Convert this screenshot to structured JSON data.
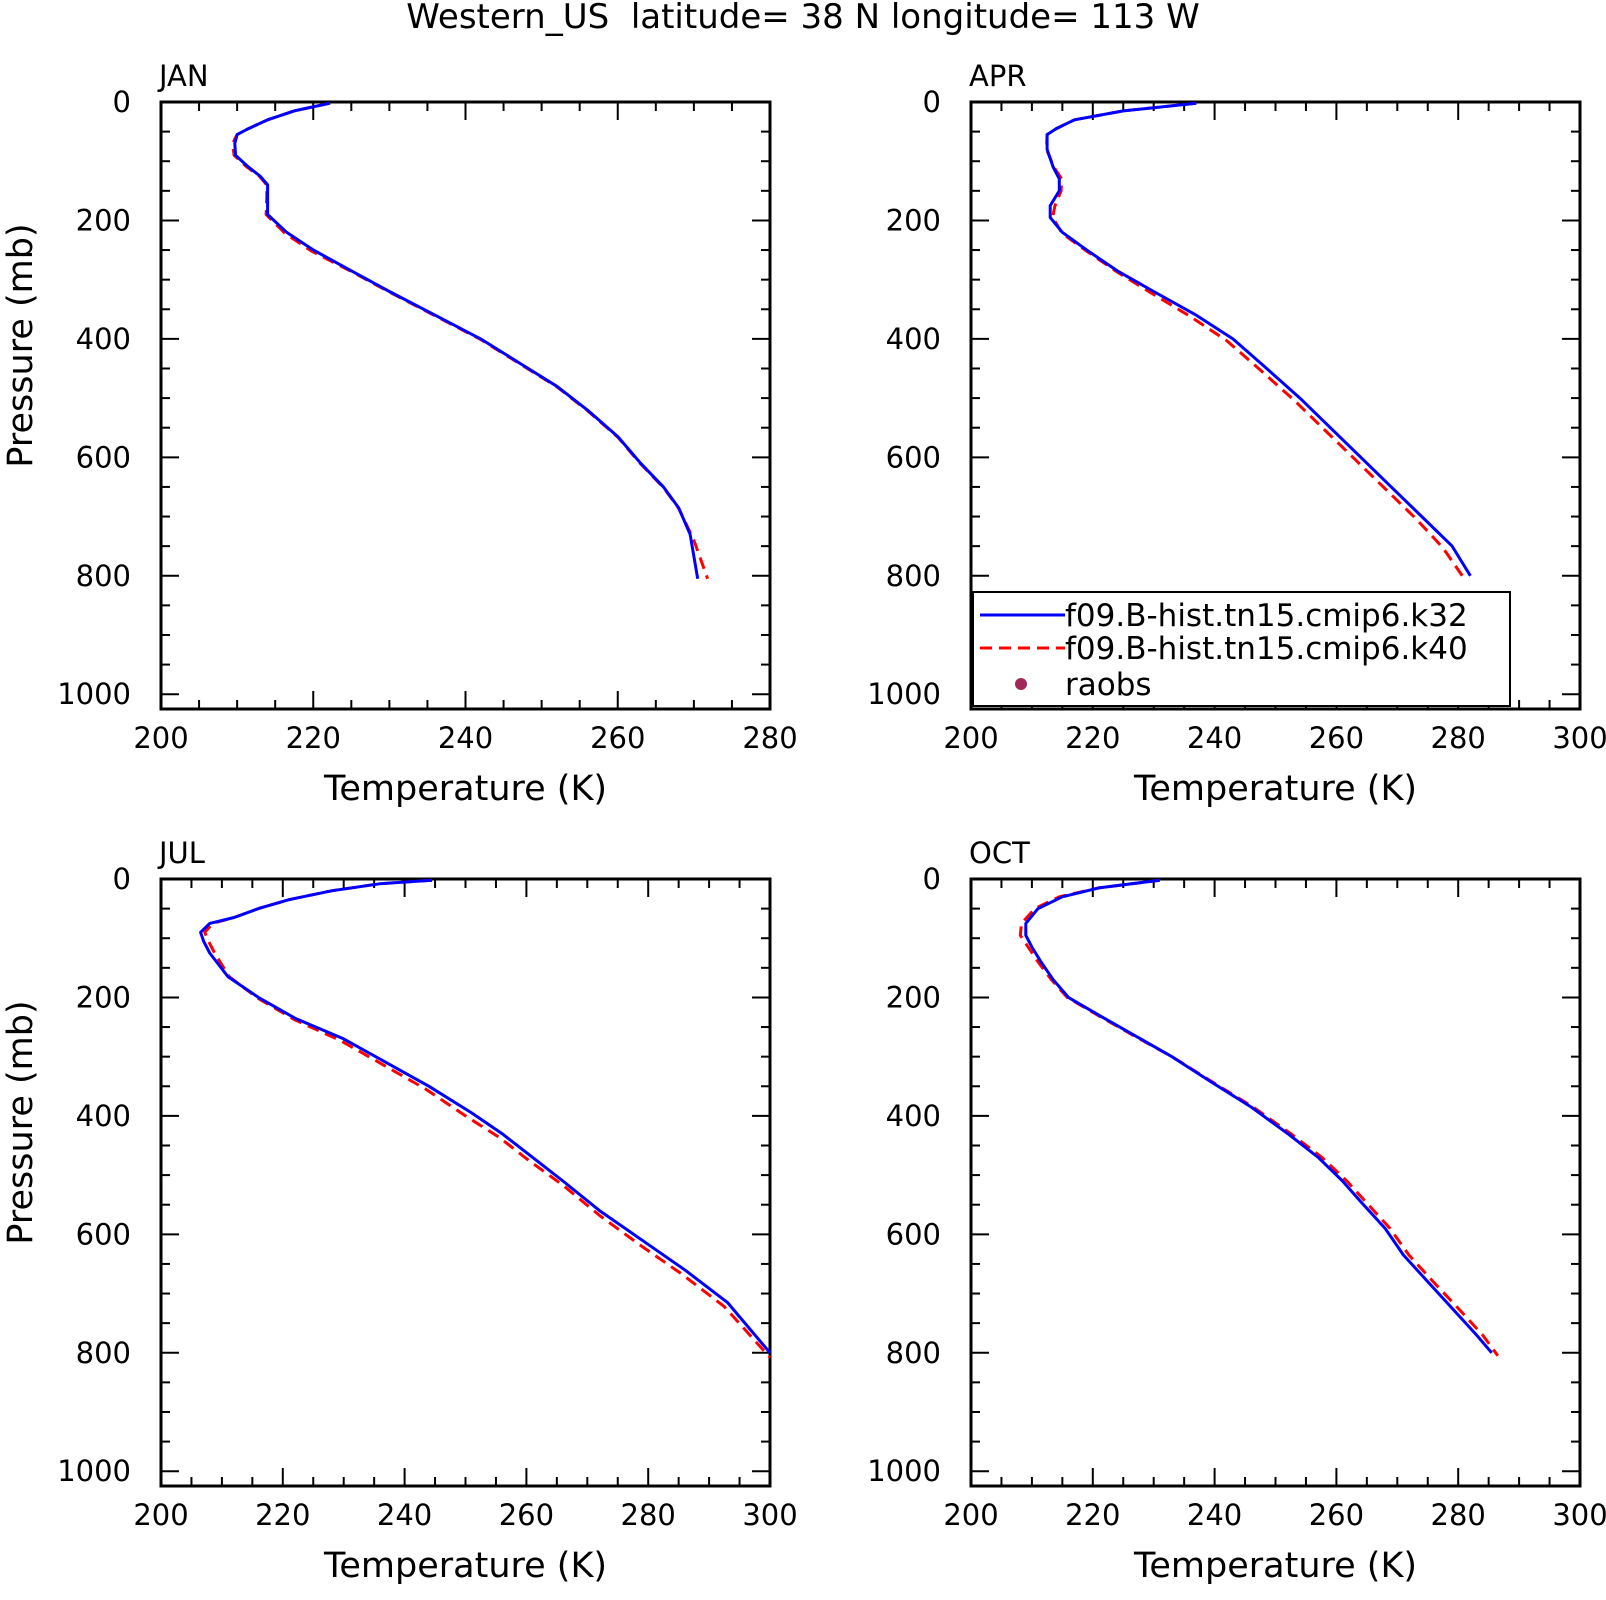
{
  "figure_title": "Western_US  latitude= 38 N longitude= 113 W",
  "legend": {
    "entries": [
      {
        "label": "f09.B-hist.tn15.cmip6.k32",
        "color": "#0000ff",
        "style": "solid"
      },
      {
        "label": "f09.B-hist.tn15.cmip6.k40",
        "color": "#ff0000",
        "style": "dashed"
      },
      {
        "label": "raobs",
        "color": "#a0295a",
        "style": "marker"
      }
    ]
  },
  "chart_data": [
    {
      "type": "line",
      "panel_label": "JAN",
      "xlabel": "Temperature (K)",
      "ylabel": "Pressure (mb)",
      "xlim": [
        200,
        280
      ],
      "ylim": [
        0,
        1025
      ],
      "y_inverted": true,
      "xticks": [
        200,
        220,
        240,
        260,
        280
      ],
      "yticks": [
        0,
        200,
        400,
        600,
        800,
        1000
      ],
      "series": [
        {
          "name": "f09.B-hist.tn15.cmip6.k32",
          "color": "#0000ff",
          "points": [
            [
              222.2,
              2
            ],
            [
              217.5,
              15
            ],
            [
              214,
              30
            ],
            [
              211.5,
              45
            ],
            [
              210,
              55
            ],
            [
              209.7,
              70
            ],
            [
              209.8,
              90
            ],
            [
              211.5,
              110
            ],
            [
              213,
              125
            ],
            [
              214,
              140
            ],
            [
              214,
              160
            ],
            [
              214,
              190
            ],
            [
              216.5,
              220
            ],
            [
              220,
              250
            ],
            [
              225,
              285
            ],
            [
              230,
              320
            ],
            [
              236,
              360
            ],
            [
              242,
              400
            ],
            [
              247,
              440
            ],
            [
              252,
              480
            ],
            [
              256,
              520
            ],
            [
              260,
              565
            ],
            [
              263,
              610
            ],
            [
              266,
              650
            ],
            [
              268,
              685
            ],
            [
              269.5,
              730
            ],
            [
              270.5,
              805
            ]
          ]
        },
        {
          "name": "f09.B-hist.tn15.cmip6.k40",
          "color": "#ff0000",
          "points": [
            [
              222.2,
              2
            ],
            [
              217.5,
              15
            ],
            [
              214,
              30
            ],
            [
              211.5,
              45
            ],
            [
              210,
              55
            ],
            [
              209.4,
              70
            ],
            [
              209.6,
              90
            ],
            [
              211.3,
              110
            ],
            [
              212.9,
              125
            ],
            [
              213.9,
              140
            ],
            [
              213.9,
              160
            ],
            [
              213.8,
              190
            ],
            [
              216.3,
              222
            ],
            [
              219.8,
              252
            ],
            [
              225,
              286
            ],
            [
              230,
              321
            ],
            [
              236,
              361
            ],
            [
              242,
              401
            ],
            [
              247,
              441
            ],
            [
              252,
              481
            ],
            [
              256,
              521
            ],
            [
              260,
              566
            ],
            [
              263,
              611
            ],
            [
              266,
              651
            ],
            [
              268,
              686
            ],
            [
              270,
              740
            ],
            [
              271.8,
              805
            ]
          ]
        }
      ]
    },
    {
      "type": "line",
      "panel_label": "APR",
      "xlabel": "Temperature (K)",
      "ylabel": "",
      "xlim": [
        200,
        300
      ],
      "ylim": [
        0,
        1025
      ],
      "y_inverted": true,
      "xticks": [
        200,
        220,
        240,
        260,
        280,
        300
      ],
      "yticks": [
        0,
        200,
        400,
        600,
        800,
        1000
      ],
      "series": [
        {
          "name": "f09.B-hist.tn15.cmip6.k32",
          "color": "#0000ff",
          "points": [
            [
              237,
              2
            ],
            [
              225,
              15
            ],
            [
              217,
              30
            ],
            [
              214,
              45
            ],
            [
              212.5,
              55
            ],
            [
              212.5,
              80
            ],
            [
              213.5,
              110
            ],
            [
              214.5,
              130
            ],
            [
              214.5,
              150
            ],
            [
              213,
              175
            ],
            [
              213,
              195
            ],
            [
              215,
              220
            ],
            [
              219,
              250
            ],
            [
              224,
              285
            ],
            [
              230,
              320
            ],
            [
              237,
              360
            ],
            [
              243,
              400
            ],
            [
              248,
              445
            ],
            [
              254,
              500
            ],
            [
              259,
              550
            ],
            [
              264,
              600
            ],
            [
              269,
              650
            ],
            [
              274,
              700
            ],
            [
              279,
              750
            ],
            [
              282,
              800
            ]
          ]
        },
        {
          "name": "f09.B-hist.tn15.cmip6.k40",
          "color": "#ff0000",
          "points": [
            [
              237,
              2
            ],
            [
              225,
              15
            ],
            [
              217,
              30
            ],
            [
              214,
              45
            ],
            [
              212.5,
              55
            ],
            [
              212.4,
              80
            ],
            [
              213.6,
              110
            ],
            [
              214.9,
              130
            ],
            [
              214.8,
              150
            ],
            [
              213.8,
              175
            ],
            [
              213.4,
              195
            ],
            [
              215,
              222
            ],
            [
              219,
              252
            ],
            [
              224,
              287
            ],
            [
              229.5,
              322
            ],
            [
              236,
              362
            ],
            [
              242,
              403
            ],
            [
              247,
              448
            ],
            [
              253,
              503
            ],
            [
              258,
              553
            ],
            [
              263,
              603
            ],
            [
              268,
              653
            ],
            [
              273,
              703
            ],
            [
              277.5,
              753
            ],
            [
              281,
              805
            ]
          ]
        }
      ]
    },
    {
      "type": "line",
      "panel_label": "JUL",
      "xlabel": "Temperature (K)",
      "ylabel": "Pressure (mb)",
      "xlim": [
        200,
        300
      ],
      "ylim": [
        0,
        1025
      ],
      "y_inverted": true,
      "xticks": [
        200,
        220,
        240,
        260,
        280,
        300
      ],
      "yticks": [
        0,
        200,
        400,
        600,
        800,
        1000
      ],
      "series": [
        {
          "name": "f09.B-hist.tn15.cmip6.k32",
          "color": "#0000ff",
          "points": [
            [
              244.5,
              2
            ],
            [
              236,
              8
            ],
            [
              228,
              20
            ],
            [
              221,
              35
            ],
            [
              216,
              50
            ],
            [
              212,
              65
            ],
            [
              208,
              75
            ],
            [
              206.5,
              90
            ],
            [
              207,
              105
            ],
            [
              208,
              125
            ],
            [
              211,
              165
            ],
            [
              216,
              200
            ],
            [
              222,
              235
            ],
            [
              230,
              270
            ],
            [
              237,
              310
            ],
            [
              244,
              350
            ],
            [
              251,
              395
            ],
            [
              256,
              430
            ],
            [
              261,
              470
            ],
            [
              266,
              510
            ],
            [
              272,
              560
            ],
            [
              279,
              610
            ],
            [
              286,
              660
            ],
            [
              293,
              715
            ],
            [
              300,
              800
            ]
          ]
        },
        {
          "name": "f09.B-hist.tn15.cmip6.k40",
          "color": "#ff0000",
          "points": [
            [
              244.5,
              2
            ],
            [
              236,
              8
            ],
            [
              228,
              20
            ],
            [
              221,
              35
            ],
            [
              216,
              50
            ],
            [
              212,
              65
            ],
            [
              208.5,
              75
            ],
            [
              207.2,
              90
            ],
            [
              207.8,
              105
            ],
            [
              208.8,
              125
            ],
            [
              211.2,
              165
            ],
            [
              216,
              202
            ],
            [
              222,
              238
            ],
            [
              229.5,
              273
            ],
            [
              236.5,
              314
            ],
            [
              243.5,
              355
            ],
            [
              250,
              400
            ],
            [
              255.5,
              436
            ],
            [
              260.5,
              476
            ],
            [
              266,
              517
            ],
            [
              272,
              568
            ],
            [
              278.5,
              617
            ],
            [
              285.5,
              667
            ],
            [
              292.5,
              722
            ],
            [
              300,
              808
            ]
          ]
        }
      ]
    },
    {
      "type": "line",
      "panel_label": "OCT",
      "xlabel": "Temperature (K)",
      "ylabel": "",
      "xlim": [
        200,
        300
      ],
      "ylim": [
        0,
        1025
      ],
      "y_inverted": true,
      "xticks": [
        200,
        220,
        240,
        260,
        280,
        300
      ],
      "yticks": [
        0,
        200,
        400,
        600,
        800,
        1000
      ],
      "series": [
        {
          "name": "f09.B-hist.tn15.cmip6.k32",
          "color": "#0000ff",
          "points": [
            [
              231,
              2
            ],
            [
              221,
              15
            ],
            [
              215,
              30
            ],
            [
              211,
              50
            ],
            [
              209,
              75
            ],
            [
              209,
              95
            ],
            [
              210,
              115
            ],
            [
              211.5,
              140
            ],
            [
              213.5,
              170
            ],
            [
              216,
              200
            ],
            [
              221,
              230
            ],
            [
              227,
              265
            ],
            [
              233,
              300
            ],
            [
              239,
              340
            ],
            [
              246,
              385
            ],
            [
              252,
              430
            ],
            [
              257,
              470
            ],
            [
              261,
              510
            ],
            [
              264,
              545
            ],
            [
              268,
              590
            ],
            [
              271,
              635
            ],
            [
              275,
              680
            ],
            [
              279,
              725
            ],
            [
              283,
              770
            ],
            [
              285.5,
              800
            ]
          ]
        },
        {
          "name": "f09.B-hist.tn15.cmip6.k40",
          "color": "#ff0000",
          "points": [
            [
              231,
              2
            ],
            [
              221,
              15
            ],
            [
              214.5,
              30
            ],
            [
              210.5,
              50
            ],
            [
              208.3,
              75
            ],
            [
              208.1,
              95
            ],
            [
              209.4,
              115
            ],
            [
              211,
              140
            ],
            [
              213.2,
              170
            ],
            [
              215.8,
              200
            ],
            [
              220.8,
              230
            ],
            [
              226.8,
              265
            ],
            [
              233,
              300
            ],
            [
              239.2,
              340
            ],
            [
              246.3,
              385
            ],
            [
              252.5,
              430
            ],
            [
              257.6,
              470
            ],
            [
              261.7,
              510
            ],
            [
              264.8,
              545
            ],
            [
              268.8,
              590
            ],
            [
              271.9,
              635
            ],
            [
              275.9,
              680
            ],
            [
              280,
              725
            ],
            [
              284,
              770
            ],
            [
              286.5,
              805
            ]
          ]
        }
      ]
    }
  ]
}
